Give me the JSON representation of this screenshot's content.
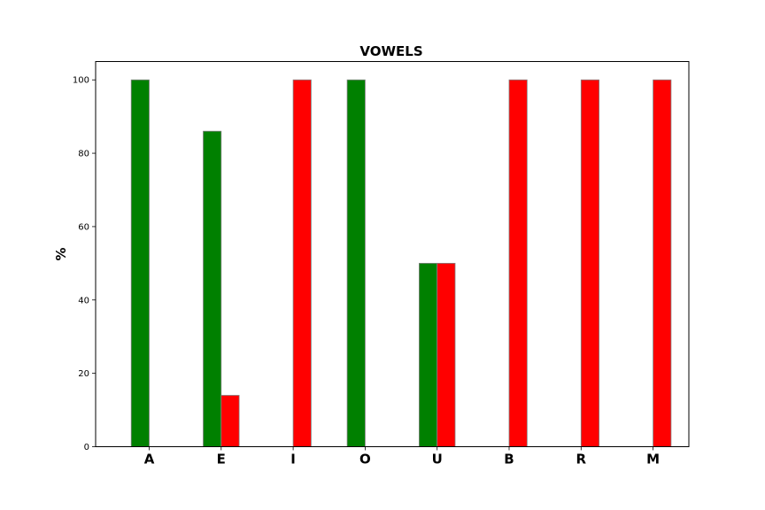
{
  "chart_data": {
    "type": "bar",
    "title": "VOWELS",
    "xlabel": "",
    "ylabel": "%",
    "ylim": [
      0,
      105
    ],
    "yticks": [
      0,
      20,
      40,
      60,
      80,
      100
    ],
    "categories": [
      "A",
      "E",
      "I",
      "O",
      "U",
      "B",
      "R",
      "M"
    ],
    "series": [
      {
        "color": "#008000",
        "values": [
          100,
          86,
          0,
          100,
          50,
          0,
          0,
          0
        ]
      },
      {
        "color": "#ff0000",
        "values": [
          0,
          14,
          100,
          0,
          50,
          100,
          100,
          100
        ]
      }
    ],
    "bar_edge_color": "#808080",
    "grid": false,
    "legend": false
  }
}
